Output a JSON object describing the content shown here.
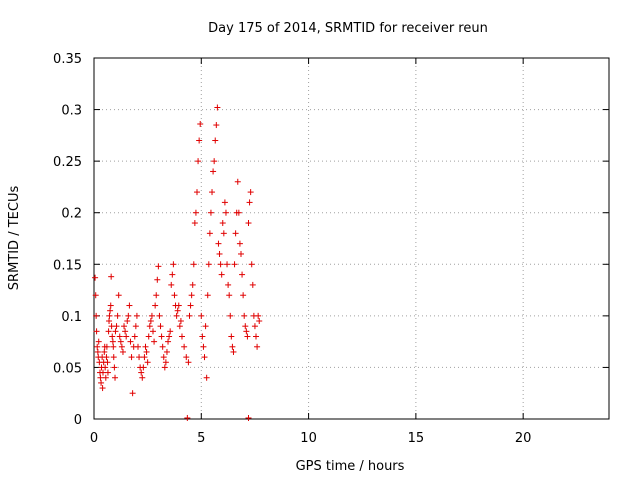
{
  "chart_data": {
    "type": "scatter",
    "title": "Day 175 of 2014, SRMTID for receiver reun",
    "xlabel": "GPS time / hours",
    "ylabel": "SRMTID / TECUs",
    "xlim": [
      0,
      24
    ],
    "ylim": [
      0,
      0.35
    ],
    "x_ticks": [
      0,
      5,
      10,
      15,
      20
    ],
    "x_tick_labels": [
      "0",
      "5",
      "10",
      "15",
      "20"
    ],
    "y_ticks": [
      0,
      0.05,
      0.1,
      0.15,
      0.2,
      0.25,
      0.3,
      0.35
    ],
    "y_tick_labels": [
      "0",
      "0.05",
      "0.1",
      "0.15",
      "0.2",
      "0.25",
      "0.3",
      "0.35"
    ],
    "grid": true,
    "marker": "+",
    "series_color": "#e00000",
    "series": [
      {
        "name": "SRMTID",
        "points": [
          [
            0.05,
            0.137
          ],
          [
            0.08,
            0.12
          ],
          [
            0.1,
            0.1
          ],
          [
            0.12,
            0.085
          ],
          [
            0.15,
            0.07
          ],
          [
            0.18,
            0.065
          ],
          [
            0.2,
            0.06
          ],
          [
            0.22,
            0.075
          ],
          [
            0.25,
            0.055
          ],
          [
            0.28,
            0.045
          ],
          [
            0.3,
            0.04
          ],
          [
            0.33,
            0.035
          ],
          [
            0.35,
            0.05
          ],
          [
            0.38,
            0.06
          ],
          [
            0.4,
            0.03
          ],
          [
            0.42,
            0.045
          ],
          [
            0.45,
            0.055
          ],
          [
            0.48,
            0.065
          ],
          [
            0.5,
            0.07
          ],
          [
            0.52,
            0.05
          ],
          [
            0.55,
            0.04
          ],
          [
            0.58,
            0.06
          ],
          [
            0.6,
            0.07
          ],
          [
            0.63,
            0.055
          ],
          [
            0.65,
            0.045
          ],
          [
            0.68,
            0.085
          ],
          [
            0.7,
            0.095
          ],
          [
            0.72,
            0.1
          ],
          [
            0.75,
            0.105
          ],
          [
            0.78,
            0.11
          ],
          [
            0.8,
            0.138
          ],
          [
            0.82,
            0.09
          ],
          [
            0.85,
            0.08
          ],
          [
            0.88,
            0.075
          ],
          [
            0.9,
            0.07
          ],
          [
            0.92,
            0.06
          ],
          [
            0.95,
            0.05
          ],
          [
            0.98,
            0.04
          ],
          [
            1.0,
            0.085
          ],
          [
            1.05,
            0.09
          ],
          [
            1.1,
            0.1
          ],
          [
            1.15,
            0.12
          ],
          [
            1.2,
            0.08
          ],
          [
            1.25,
            0.075
          ],
          [
            1.3,
            0.07
          ],
          [
            1.35,
            0.065
          ],
          [
            1.4,
            0.09
          ],
          [
            1.45,
            0.085
          ],
          [
            1.5,
            0.08
          ],
          [
            1.55,
            0.095
          ],
          [
            1.6,
            0.1
          ],
          [
            1.65,
            0.11
          ],
          [
            1.7,
            0.075
          ],
          [
            1.75,
            0.06
          ],
          [
            1.8,
            0.025
          ],
          [
            1.85,
            0.07
          ],
          [
            1.9,
            0.08
          ],
          [
            1.95,
            0.09
          ],
          [
            2.0,
            0.1
          ],
          [
            2.05,
            0.07
          ],
          [
            2.1,
            0.06
          ],
          [
            2.15,
            0.05
          ],
          [
            2.2,
            0.045
          ],
          [
            2.25,
            0.04
          ],
          [
            2.3,
            0.05
          ],
          [
            2.35,
            0.06
          ],
          [
            2.4,
            0.07
          ],
          [
            2.45,
            0.065
          ],
          [
            2.5,
            0.055
          ],
          [
            2.55,
            0.08
          ],
          [
            2.6,
            0.09
          ],
          [
            2.65,
            0.095
          ],
          [
            2.7,
            0.1
          ],
          [
            2.75,
            0.085
          ],
          [
            2.8,
            0.075
          ],
          [
            2.85,
            0.11
          ],
          [
            2.9,
            0.12
          ],
          [
            2.95,
            0.135
          ],
          [
            3.0,
            0.148
          ],
          [
            3.05,
            0.1
          ],
          [
            3.1,
            0.09
          ],
          [
            3.15,
            0.08
          ],
          [
            3.2,
            0.07
          ],
          [
            3.25,
            0.06
          ],
          [
            3.3,
            0.05
          ],
          [
            3.35,
            0.055
          ],
          [
            3.4,
            0.065
          ],
          [
            3.45,
            0.075
          ],
          [
            3.5,
            0.08
          ],
          [
            3.55,
            0.085
          ],
          [
            3.6,
            0.13
          ],
          [
            3.65,
            0.14
          ],
          [
            3.7,
            0.15
          ],
          [
            3.75,
            0.12
          ],
          [
            3.8,
            0.11
          ],
          [
            3.85,
            0.1
          ],
          [
            3.9,
            0.105
          ],
          [
            3.95,
            0.11
          ],
          [
            4.0,
            0.09
          ],
          [
            4.05,
            0.095
          ],
          [
            4.1,
            0.08
          ],
          [
            4.2,
            0.07
          ],
          [
            4.3,
            0.06
          ],
          [
            4.4,
            0.055
          ],
          [
            4.45,
            0.1
          ],
          [
            4.5,
            0.11
          ],
          [
            4.55,
            0.12
          ],
          [
            4.6,
            0.13
          ],
          [
            4.65,
            0.15
          ],
          [
            4.7,
            0.19
          ],
          [
            4.75,
            0.2
          ],
          [
            4.8,
            0.22
          ],
          [
            4.85,
            0.25
          ],
          [
            4.9,
            0.27
          ],
          [
            4.95,
            0.286
          ],
          [
            5.0,
            0.1
          ],
          [
            5.05,
            0.08
          ],
          [
            5.1,
            0.07
          ],
          [
            5.15,
            0.06
          ],
          [
            5.2,
            0.09
          ],
          [
            5.25,
            0.04
          ],
          [
            5.3,
            0.12
          ],
          [
            5.35,
            0.15
          ],
          [
            5.4,
            0.18
          ],
          [
            5.45,
            0.2
          ],
          [
            5.5,
            0.22
          ],
          [
            5.55,
            0.24
          ],
          [
            5.6,
            0.25
          ],
          [
            5.65,
            0.27
          ],
          [
            5.7,
            0.285
          ],
          [
            5.75,
            0.302
          ],
          [
            5.8,
            0.17
          ],
          [
            5.85,
            0.16
          ],
          [
            5.9,
            0.15
          ],
          [
            5.95,
            0.14
          ],
          [
            6.0,
            0.19
          ],
          [
            6.05,
            0.18
          ],
          [
            6.1,
            0.21
          ],
          [
            6.15,
            0.2
          ],
          [
            6.2,
            0.15
          ],
          [
            6.25,
            0.13
          ],
          [
            6.3,
            0.12
          ],
          [
            6.35,
            0.1
          ],
          [
            6.4,
            0.08
          ],
          [
            6.45,
            0.07
          ],
          [
            6.5,
            0.065
          ],
          [
            6.55,
            0.15
          ],
          [
            6.6,
            0.18
          ],
          [
            6.65,
            0.2
          ],
          [
            6.7,
            0.23
          ],
          [
            6.75,
            0.2
          ],
          [
            6.8,
            0.17
          ],
          [
            6.85,
            0.16
          ],
          [
            6.9,
            0.14
          ],
          [
            6.95,
            0.12
          ],
          [
            7.0,
            0.1
          ],
          [
            7.05,
            0.09
          ],
          [
            7.1,
            0.085
          ],
          [
            7.15,
            0.08
          ],
          [
            7.2,
            0.19
          ],
          [
            7.25,
            0.21
          ],
          [
            7.3,
            0.22
          ],
          [
            7.35,
            0.15
          ],
          [
            7.4,
            0.13
          ],
          [
            7.45,
            0.1
          ],
          [
            7.5,
            0.09
          ],
          [
            7.55,
            0.08
          ],
          [
            7.6,
            0.07
          ],
          [
            7.65,
            0.1
          ],
          [
            7.7,
            0.095
          ],
          [
            4.35,
            0.001
          ],
          [
            7.2,
            0.001
          ]
        ]
      }
    ]
  }
}
